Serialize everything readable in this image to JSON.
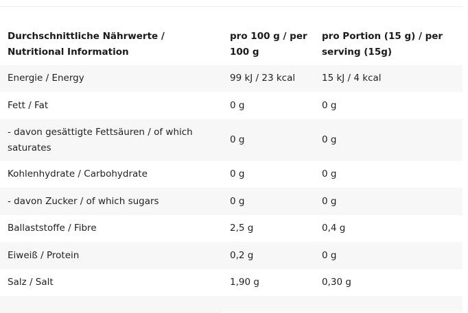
{
  "table": {
    "headers": [
      "Durchschnittliche Nährwerte / Nutritional Information",
      "pro 100 g / per 100 g",
      "pro Portion (15 g) / per serving (15g)"
    ],
    "rows": [
      [
        "Energie / Energy",
        "99 kJ / 23 kcal",
        "15 kJ / 4 kcal"
      ],
      [
        "Fett / Fat",
        "0 g",
        "0 g"
      ],
      [
        "- davon gesättigte Fettsäuren / of which saturates",
        "0 g",
        "0 g"
      ],
      [
        "Kohlenhydrate / Carbohydrate",
        "0 g",
        "0 g"
      ],
      [
        "- davon Zucker / of which sugars",
        "0 g",
        "0 g"
      ],
      [
        "Ballaststoffe / Fibre",
        "2,5 g",
        "0,4 g"
      ],
      [
        "Eiweiß / Protein",
        "0,2 g",
        "0 g"
      ],
      [
        "Salz / Salt",
        "1,90 g",
        "0,30 g"
      ]
    ]
  },
  "colors": {
    "row_stripe": "#f7f7f7",
    "text": "#1f1f1f",
    "background": "#ffffff"
  }
}
